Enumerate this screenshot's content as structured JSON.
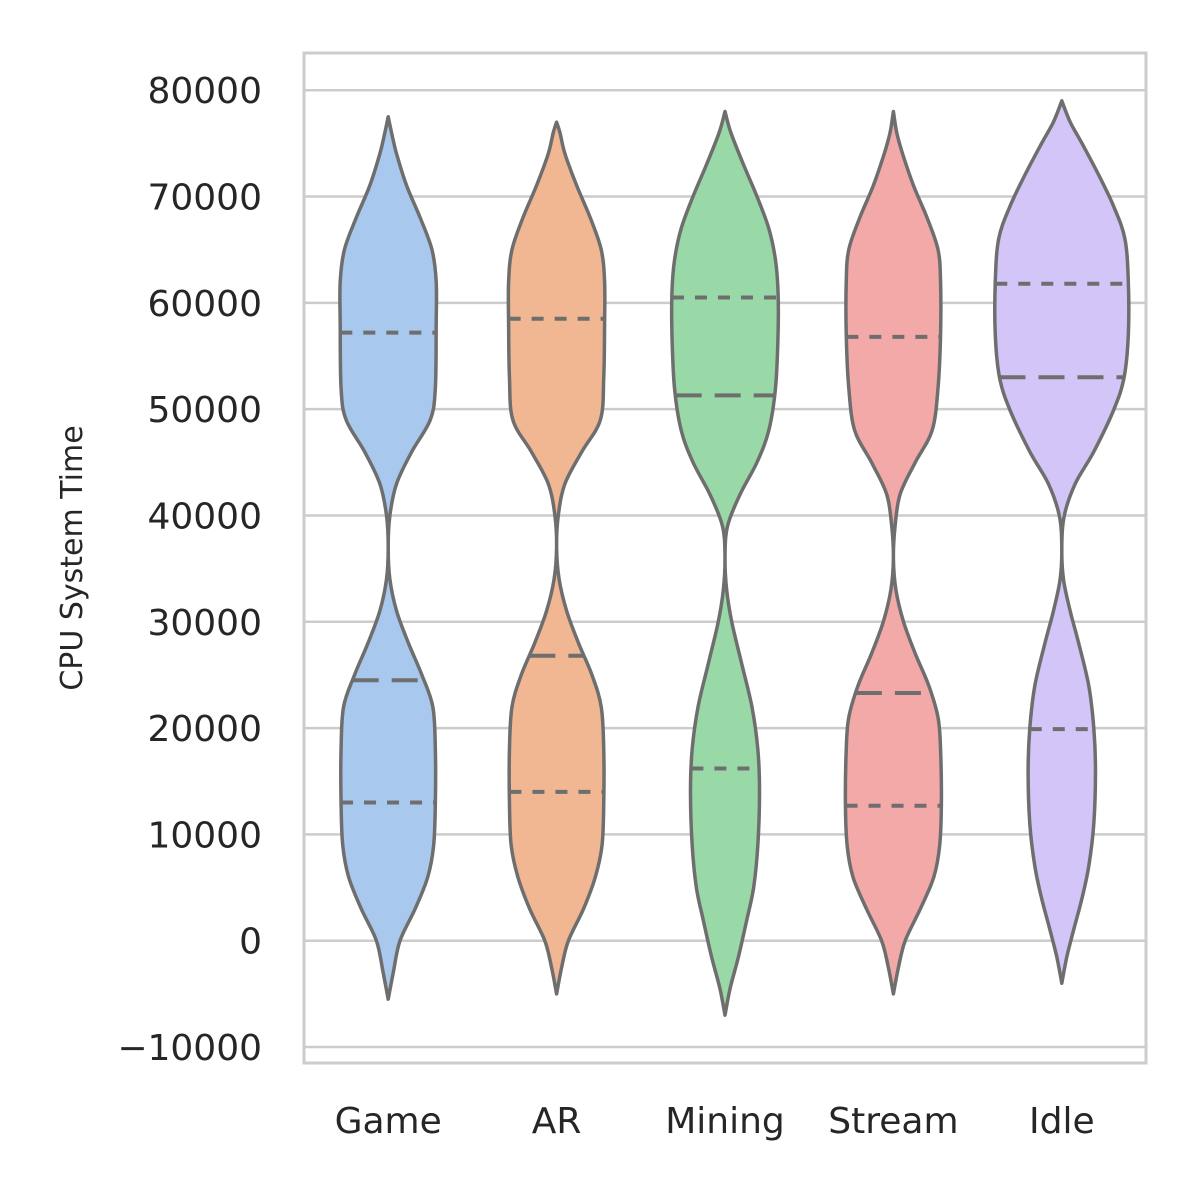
{
  "chart_data": {
    "type": "violin",
    "title": "",
    "xlabel": "",
    "ylabel": "CPU System Time",
    "ylim": [
      -11500,
      83500
    ],
    "yticks": [
      -10000,
      0,
      10000,
      20000,
      30000,
      40000,
      50000,
      60000,
      70000,
      80000
    ],
    "ytick_labels": [
      "−10000",
      "0",
      "10000",
      "20000",
      "30000",
      "40000",
      "50000",
      "60000",
      "70000",
      "80000"
    ],
    "grid": "horizontal",
    "legend": "none",
    "inner": "quartile",
    "edge_color": "#6e6e6e",
    "grid_color": "#cccccc",
    "categories": [
      "Game",
      "AR",
      "Mining",
      "Stream",
      "Idle"
    ],
    "violins": [
      {
        "category": "Game",
        "color": "#a9c8ed",
        "min": -5500,
        "max": 77500,
        "quartiles": [
          13000,
          24500,
          57200
        ],
        "profile": [
          [
            -5500,
            0.0
          ],
          [
            -3000,
            0.06
          ],
          [
            0,
            0.14
          ],
          [
            3000,
            0.32
          ],
          [
            6000,
            0.47
          ],
          [
            9000,
            0.54
          ],
          [
            13000,
            0.56
          ],
          [
            18000,
            0.56
          ],
          [
            22000,
            0.53
          ],
          [
            25000,
            0.4
          ],
          [
            28000,
            0.24
          ],
          [
            31000,
            0.1
          ],
          [
            34000,
            0.02
          ],
          [
            37000,
            0.0
          ],
          [
            40000,
            0.02
          ],
          [
            43000,
            0.1
          ],
          [
            46000,
            0.28
          ],
          [
            49000,
            0.5
          ],
          [
            52000,
            0.56
          ],
          [
            58000,
            0.57
          ],
          [
            62000,
            0.57
          ],
          [
            65000,
            0.52
          ],
          [
            68000,
            0.38
          ],
          [
            71000,
            0.22
          ],
          [
            74000,
            0.1
          ],
          [
            76000,
            0.04
          ],
          [
            77500,
            0.0
          ]
        ]
      },
      {
        "category": "AR",
        "color": "#f0b792",
        "min": -5000,
        "max": 77000,
        "quartiles": [
          14000,
          26800,
          58500
        ],
        "profile": [
          [
            -5000,
            0.0
          ],
          [
            -2500,
            0.06
          ],
          [
            0,
            0.14
          ],
          [
            3000,
            0.32
          ],
          [
            6000,
            0.46
          ],
          [
            9000,
            0.54
          ],
          [
            13000,
            0.56
          ],
          [
            18000,
            0.56
          ],
          [
            22000,
            0.53
          ],
          [
            25000,
            0.42
          ],
          [
            28000,
            0.26
          ],
          [
            31000,
            0.12
          ],
          [
            34000,
            0.03
          ],
          [
            37000,
            0.0
          ],
          [
            40000,
            0.02
          ],
          [
            43000,
            0.1
          ],
          [
            46000,
            0.3
          ],
          [
            49000,
            0.52
          ],
          [
            53000,
            0.56
          ],
          [
            58000,
            0.57
          ],
          [
            62000,
            0.57
          ],
          [
            65000,
            0.53
          ],
          [
            68000,
            0.4
          ],
          [
            71000,
            0.24
          ],
          [
            74000,
            0.1
          ],
          [
            76000,
            0.04
          ],
          [
            77000,
            0.0
          ]
        ]
      },
      {
        "category": "Mining",
        "color": "#99d9a8",
        "min": -7000,
        "max": 78000,
        "quartiles": [
          16200,
          51300,
          60500
        ],
        "profile": [
          [
            -7000,
            0.0
          ],
          [
            -4500,
            0.06
          ],
          [
            -1500,
            0.16
          ],
          [
            2000,
            0.26
          ],
          [
            5000,
            0.34
          ],
          [
            9000,
            0.39
          ],
          [
            14000,
            0.41
          ],
          [
            18000,
            0.39
          ],
          [
            22000,
            0.32
          ],
          [
            26000,
            0.2
          ],
          [
            30000,
            0.08
          ],
          [
            33000,
            0.02
          ],
          [
            36000,
            0.0
          ],
          [
            39000,
            0.03
          ],
          [
            42000,
            0.18
          ],
          [
            45000,
            0.38
          ],
          [
            48000,
            0.52
          ],
          [
            52000,
            0.6
          ],
          [
            57000,
            0.63
          ],
          [
            61000,
            0.63
          ],
          [
            64000,
            0.6
          ],
          [
            67000,
            0.52
          ],
          [
            70000,
            0.38
          ],
          [
            73000,
            0.22
          ],
          [
            76000,
            0.07
          ],
          [
            78000,
            0.0
          ]
        ]
      },
      {
        "category": "Stream",
        "color": "#f3a9a8",
        "min": -5000,
        "max": 78000,
        "quartiles": [
          12700,
          23300,
          56800
        ],
        "profile": [
          [
            -5000,
            0.0
          ],
          [
            -2500,
            0.06
          ],
          [
            0,
            0.14
          ],
          [
            3000,
            0.32
          ],
          [
            6000,
            0.48
          ],
          [
            9000,
            0.55
          ],
          [
            13000,
            0.57
          ],
          [
            18000,
            0.56
          ],
          [
            21000,
            0.53
          ],
          [
            24000,
            0.42
          ],
          [
            27000,
            0.26
          ],
          [
            30000,
            0.12
          ],
          [
            33000,
            0.03
          ],
          [
            36000,
            0.0
          ],
          [
            39000,
            0.02
          ],
          [
            42000,
            0.08
          ],
          [
            45000,
            0.26
          ],
          [
            48000,
            0.46
          ],
          [
            52000,
            0.53
          ],
          [
            57000,
            0.56
          ],
          [
            62000,
            0.56
          ],
          [
            65000,
            0.53
          ],
          [
            68000,
            0.4
          ],
          [
            71000,
            0.24
          ],
          [
            74000,
            0.11
          ],
          [
            76000,
            0.04
          ],
          [
            78000,
            0.0
          ]
        ]
      },
      {
        "category": "Idle",
        "color": "#d3c5f7",
        "min": -4000,
        "max": 79000,
        "quartiles": [
          19900,
          53000,
          61800
        ],
        "profile": [
          [
            -4000,
            0.0
          ],
          [
            -1500,
            0.06
          ],
          [
            1000,
            0.14
          ],
          [
            4000,
            0.24
          ],
          [
            7000,
            0.32
          ],
          [
            11000,
            0.38
          ],
          [
            16000,
            0.4
          ],
          [
            20000,
            0.38
          ],
          [
            24000,
            0.32
          ],
          [
            28000,
            0.2
          ],
          [
            31000,
            0.1
          ],
          [
            34000,
            0.02
          ],
          [
            37000,
            0.0
          ],
          [
            40000,
            0.03
          ],
          [
            43000,
            0.16
          ],
          [
            46000,
            0.38
          ],
          [
            50000,
            0.62
          ],
          [
            53000,
            0.74
          ],
          [
            57000,
            0.79
          ],
          [
            62000,
            0.79
          ],
          [
            66000,
            0.75
          ],
          [
            69000,
            0.62
          ],
          [
            72000,
            0.44
          ],
          [
            75000,
            0.24
          ],
          [
            77000,
            0.1
          ],
          [
            79000,
            0.0
          ]
        ]
      }
    ]
  }
}
